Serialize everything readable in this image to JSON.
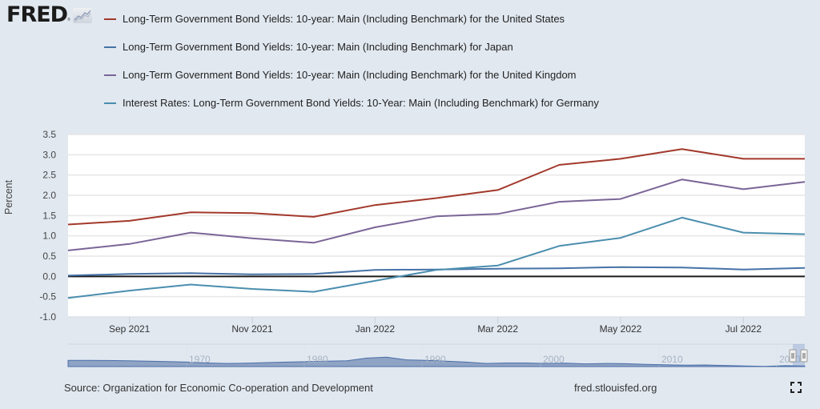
{
  "header": {
    "logo_text": "FRED",
    "logo_reg": "®",
    "logo_icon": "line-graph-icon"
  },
  "legend": [
    {
      "label": "Long-Term Government Bond Yields: 10-year: Main (Including Benchmark) for the United States",
      "color": "#a2392b"
    },
    {
      "label": "Long-Term Government Bond Yields: 10-year: Main (Including Benchmark) for Japan",
      "color": "#4572a7"
    },
    {
      "label": "Long-Term Government Bond Yields: 10-year: Main (Including Benchmark) for the United Kingdom",
      "color": "#7a6597"
    },
    {
      "label": "Interest Rates: Long-Term Government Bond Yields: 10-Year: Main (Including Benchmark) for Germany",
      "color": "#4a8eae"
    }
  ],
  "chart_data": {
    "type": "line",
    "title": "",
    "xlabel": "",
    "ylabel": "Percent",
    "ylim": [
      -1.0,
      3.5
    ],
    "yticks": [
      "3.5",
      "3.0",
      "2.5",
      "2.0",
      "1.5",
      "1.0",
      "0.5",
      "0.0",
      "-0.5",
      "-1.0"
    ],
    "ytick_values": [
      3.5,
      3.0,
      2.5,
      2.0,
      1.5,
      1.0,
      0.5,
      0.0,
      -0.5,
      -1.0
    ],
    "x": [
      "Aug 2021",
      "Sep 2021",
      "Oct 2021",
      "Nov 2021",
      "Dec 2021",
      "Jan 2022",
      "Feb 2022",
      "Mar 2022",
      "Apr 2022",
      "May 2022",
      "Jun 2022",
      "Jul 2022",
      "Aug 2022"
    ],
    "xticks": [
      {
        "label": "Sep 2021",
        "index": 1
      },
      {
        "label": "Nov 2021",
        "index": 3
      },
      {
        "label": "Jan 2022",
        "index": 5
      },
      {
        "label": "Mar 2022",
        "index": 7
      },
      {
        "label": "May 2022",
        "index": 9
      },
      {
        "label": "Jul 2022",
        "index": 11
      }
    ],
    "grid": true,
    "zero_line": true,
    "legend_position": "top",
    "series": [
      {
        "name": "United States",
        "color": "#a2392b",
        "values": [
          1.28,
          1.37,
          1.58,
          1.56,
          1.47,
          1.76,
          1.93,
          2.13,
          2.75,
          2.9,
          3.14,
          2.9,
          2.9
        ]
      },
      {
        "name": "Japan",
        "color": "#4572a7",
        "values": [
          0.02,
          0.06,
          0.08,
          0.05,
          0.06,
          0.16,
          0.17,
          0.19,
          0.2,
          0.23,
          0.22,
          0.17,
          0.21
        ]
      },
      {
        "name": "United Kingdom",
        "color": "#7a6597",
        "values": [
          0.64,
          0.8,
          1.08,
          0.94,
          0.83,
          1.21,
          1.48,
          1.54,
          1.84,
          1.91,
          2.39,
          2.15,
          2.33
        ]
      },
      {
        "name": "Germany",
        "color": "#4a8eae",
        "values": [
          -0.53,
          -0.35,
          -0.2,
          -0.31,
          -0.38,
          -0.11,
          0.16,
          0.27,
          0.75,
          0.95,
          1.45,
          1.08,
          1.04
        ]
      }
    ],
    "navigator": {
      "labels": [
        "1970",
        "1980",
        "1990",
        "2000",
        "2010",
        "2020"
      ],
      "fill_color": "#8fa3c4",
      "line_color": "#4a6ea8"
    }
  },
  "footer": {
    "source": "Source: Organization for Economic Co-operation and Development",
    "url": "fred.stlouisfed.org",
    "fullscreen_icon": "fullscreen-icon"
  }
}
